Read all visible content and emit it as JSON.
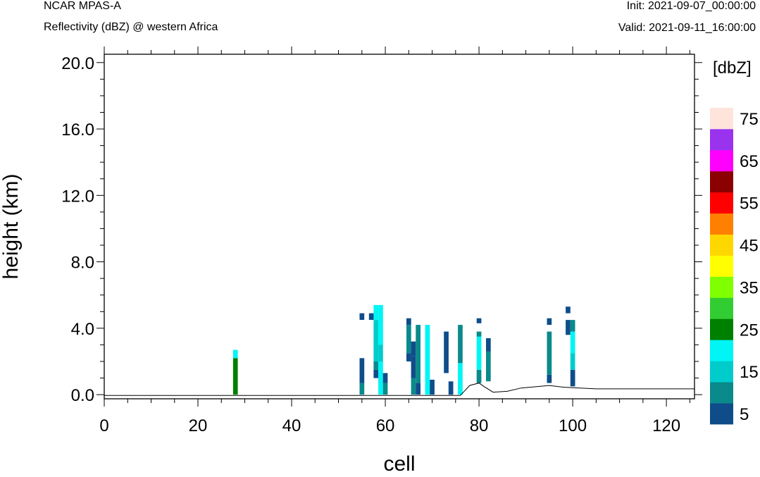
{
  "header": {
    "left_line1": "NCAR MPAS-A",
    "left_line2": "Reflectivity (dBZ) @ western Africa",
    "right_line1": "Init: 2021-09-07_00:00:00",
    "right_line2": "Valid: 2021-09-11_16:00:00"
  },
  "chart_data": {
    "type": "heatmap",
    "xlabel": "cell",
    "ylabel": "height (km)",
    "xlim": [
      0,
      126
    ],
    "ylim": [
      -0.25,
      20.5
    ],
    "xticks": [
      0,
      20,
      40,
      60,
      80,
      100,
      120
    ],
    "xtick_labels": [
      "0",
      "20",
      "40",
      "60",
      "80",
      "100",
      "120"
    ],
    "yticks": [
      0,
      4,
      8,
      12,
      16,
      20
    ],
    "ytick_labels": [
      "0.0",
      "4.0",
      "8.0",
      "12.0",
      "16.0",
      "20.0"
    ],
    "colorbar": {
      "title": "[dbZ]",
      "levels": [
        5,
        10,
        15,
        20,
        25,
        30,
        35,
        40,
        45,
        50,
        55,
        60,
        65,
        70,
        75
      ],
      "colors": [
        "#0f4d8a",
        "#0a8a8a",
        "#00cccc",
        "#00f5f5",
        "#008000",
        "#32cd32",
        "#7fff00",
        "#ffff00",
        "#ffd700",
        "#ff8000",
        "#ff0000",
        "#8b0000",
        "#ff00ff",
        "#9933ee",
        "#ffe4dc"
      ],
      "tick_labels": [
        "5",
        "15",
        "25",
        "35",
        "45",
        "55",
        "65",
        "75"
      ]
    },
    "terrain": [
      [
        0,
        -0.05
      ],
      [
        76,
        -0.05
      ],
      [
        78,
        0.55
      ],
      [
        80,
        0.7
      ],
      [
        81,
        0.5
      ],
      [
        83,
        0.15
      ],
      [
        86,
        0.2
      ],
      [
        89,
        0.4
      ],
      [
        95,
        0.55
      ],
      [
        98,
        0.45
      ],
      [
        100,
        0.42
      ],
      [
        105,
        0.35
      ],
      [
        126,
        0.35
      ]
    ],
    "columns": [
      {
        "cell": 28,
        "segments": [
          [
            0,
            2.2,
            25
          ],
          [
            2.2,
            2.7,
            20
          ]
        ]
      },
      {
        "cell": 55,
        "segments": [
          [
            0,
            0.7,
            10
          ],
          [
            0.7,
            2.2,
            5
          ]
        ]
      },
      {
        "cell": 55,
        "segments": [
          [
            4.5,
            4.9,
            5
          ]
        ]
      },
      {
        "cell": 57,
        "segments": [
          [
            4.5,
            4.9,
            5
          ]
        ]
      },
      {
        "cell": 58,
        "segments": [
          [
            1.0,
            1.5,
            5
          ],
          [
            1.5,
            2.0,
            10
          ],
          [
            2.0,
            4.5,
            15
          ],
          [
            4.5,
            5.4,
            20
          ]
        ]
      },
      {
        "cell": 59,
        "segments": [
          [
            0,
            2.0,
            20
          ],
          [
            2.0,
            3.0,
            15
          ],
          [
            3.0,
            5.4,
            20
          ]
        ]
      },
      {
        "cell": 60,
        "segments": [
          [
            0,
            0.7,
            10
          ],
          [
            0.7,
            1.3,
            5
          ]
        ]
      },
      {
        "cell": 65,
        "segments": [
          [
            2.0,
            2.5,
            5
          ],
          [
            2.5,
            4.2,
            10
          ],
          [
            4.2,
            4.6,
            5
          ]
        ]
      },
      {
        "cell": 66,
        "segments": [
          [
            0,
            1.0,
            10
          ],
          [
            1.0,
            2.3,
            5
          ],
          [
            2.3,
            3.2,
            5
          ]
        ]
      },
      {
        "cell": 67,
        "segments": [
          [
            0,
            0.7,
            5
          ],
          [
            0.7,
            4.2,
            10
          ]
        ]
      },
      {
        "cell": 69,
        "segments": [
          [
            0,
            4.2,
            20
          ]
        ]
      },
      {
        "cell": 70,
        "segments": [
          [
            0,
            0.9,
            5
          ]
        ]
      },
      {
        "cell": 73,
        "segments": [
          [
            1.3,
            3.8,
            5
          ]
        ]
      },
      {
        "cell": 74,
        "segments": [
          [
            0,
            0.8,
            5
          ]
        ]
      },
      {
        "cell": 76,
        "segments": [
          [
            0,
            1.9,
            20
          ],
          [
            1.9,
            4.2,
            10
          ]
        ]
      },
      {
        "cell": 80,
        "segments": [
          [
            0.7,
            1.5,
            10
          ],
          [
            1.5,
            3.5,
            20
          ],
          [
            3.5,
            3.8,
            10
          ],
          [
            4.3,
            4.6,
            5
          ]
        ]
      },
      {
        "cell": 82,
        "segments": [
          [
            0.8,
            2.6,
            10
          ],
          [
            2.6,
            3.4,
            5
          ]
        ]
      },
      {
        "cell": 95,
        "segments": [
          [
            0.7,
            1.2,
            5
          ],
          [
            1.2,
            3.0,
            10
          ],
          [
            3.0,
            3.8,
            10
          ],
          [
            4.2,
            4.6,
            5
          ]
        ]
      },
      {
        "cell": 99,
        "segments": [
          [
            3.6,
            4.5,
            5
          ],
          [
            4.9,
            5.3,
            5
          ]
        ]
      },
      {
        "cell": 100,
        "segments": [
          [
            0.5,
            1.5,
            5
          ],
          [
            1.5,
            2.5,
            15
          ],
          [
            2.5,
            3.8,
            20
          ],
          [
            3.8,
            4.5,
            10
          ]
        ]
      }
    ]
  }
}
